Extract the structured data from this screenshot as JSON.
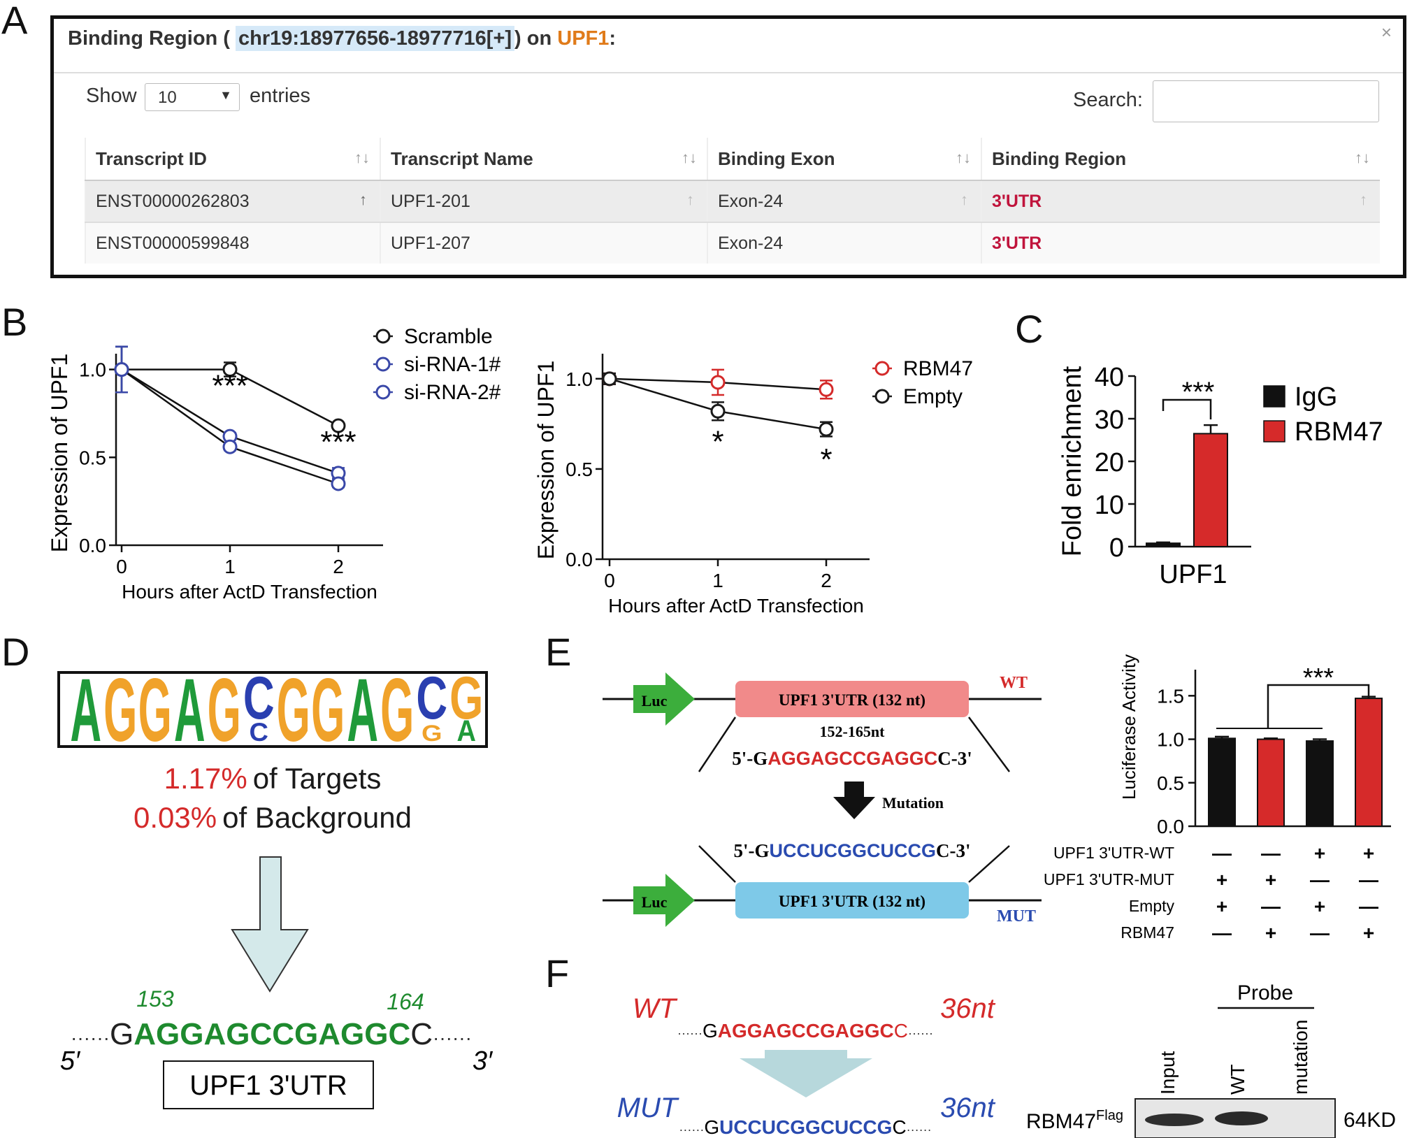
{
  "panel_labels": {
    "a": "A",
    "b": "B",
    "c": "C",
    "d": "D",
    "e": "E",
    "f": "F"
  },
  "panelA": {
    "title_prefix": "Binding Region (",
    "locus": "chr19:18977656-18977716[+]",
    "title_mid": ") on",
    "gene": "UPF1",
    "title_suffix": ":",
    "close": "×",
    "show_label": "Show",
    "entries_value": "10",
    "entries_label": "entries",
    "search_label": "Search:",
    "columns": [
      "Transcript ID",
      "Transcript Name",
      "Binding Exon",
      "Binding Region"
    ],
    "rows": [
      [
        "ENST00000262803",
        "UPF1-201",
        "Exon-24",
        "3'UTR"
      ],
      [
        "ENST00000599848",
        "UPF1-207",
        "Exon-24",
        "3'UTR"
      ]
    ]
  },
  "chart_data": [
    {
      "id": "B-left",
      "type": "line",
      "xlabel": "Hours after ActD Transfection",
      "ylabel": "Expression of UPF1",
      "x": [
        0,
        1,
        2
      ],
      "xticks": [
        "0",
        "1",
        "2"
      ],
      "yticks": [
        "0.0",
        "0.5",
        "1.0"
      ],
      "ylim": [
        0,
        1.05
      ],
      "series": [
        {
          "name": "Scramble",
          "color": "#1a1a1a",
          "values": [
            1.0,
            1.0,
            0.68
          ],
          "err": [
            0.13,
            0.04,
            0.01
          ]
        },
        {
          "name": "si-RNA-1#",
          "color": "#3a48a8",
          "values": [
            1.0,
            0.62,
            0.41
          ],
          "err": [
            0.13,
            0.02,
            0.03
          ]
        },
        {
          "name": "si-RNA-2#",
          "color": "#3a48a8",
          "values": [
            1.0,
            0.56,
            0.35
          ],
          "err": [
            0.13,
            0.02,
            0.02
          ]
        }
      ],
      "annotations": [
        {
          "x": 1,
          "text": "***"
        },
        {
          "x": 2,
          "text": "***"
        }
      ]
    },
    {
      "id": "B-right",
      "type": "line",
      "xlabel": "Hours after ActD Transfection",
      "ylabel": "Expression of UPF1",
      "x": [
        0,
        1,
        2
      ],
      "xticks": [
        "0",
        "1",
        "2"
      ],
      "yticks": [
        "0.0",
        "0.5",
        "1.0"
      ],
      "ylim": [
        0,
        1.1
      ],
      "series": [
        {
          "name": "RBM47",
          "color": "#d42a2a",
          "values": [
            1.0,
            0.98,
            0.94
          ],
          "err": [
            0.03,
            0.07,
            0.05
          ]
        },
        {
          "name": "Empty",
          "color": "#1a1a1a",
          "values": [
            1.0,
            0.82,
            0.72
          ],
          "err": [
            0.03,
            0.05,
            0.04
          ]
        }
      ],
      "annotations": [
        {
          "x": 1,
          "text": "*"
        },
        {
          "x": 2,
          "text": "*"
        }
      ]
    },
    {
      "id": "C",
      "type": "bar",
      "categories": [
        "IgG",
        "RBM47"
      ],
      "values": [
        0.8,
        26.5
      ],
      "err": [
        0.2,
        2.0
      ],
      "colors": [
        "#111111",
        "#d62a2a"
      ],
      "ylabel": "Fold enrichment",
      "xlabel": "UPF1",
      "yticks": [
        "0",
        "10",
        "20",
        "30",
        "40"
      ],
      "ylim": [
        0,
        40
      ],
      "annotation": "***"
    },
    {
      "id": "E",
      "type": "bar",
      "ylabel": "Luciferase Activity",
      "values": [
        1.01,
        1.0,
        0.98,
        1.47
      ],
      "err": [
        0.02,
        0.01,
        0.02,
        0.02
      ],
      "colors": [
        "#111111",
        "#d62a2a",
        "#111111",
        "#d62a2a"
      ],
      "yticks": [
        "0.0",
        "0.5",
        "1.0",
        "1.5"
      ],
      "ylim": [
        0,
        1.8
      ],
      "annotation": "***",
      "conditions": [
        {
          "label": "UPF1 3'UTR-WT",
          "signs": [
            "—",
            "—",
            "+",
            "+"
          ]
        },
        {
          "label": "UPF1 3'UTR-MUT",
          "signs": [
            "+",
            "+",
            "—",
            "—"
          ]
        },
        {
          "label": "Empty",
          "signs": [
            "+",
            "—",
            "+",
            "—"
          ]
        },
        {
          "label": "RBM47",
          "signs": [
            "—",
            "+",
            "—",
            "+"
          ]
        }
      ]
    }
  ],
  "panelD": {
    "motif": [
      "A",
      "G",
      "G",
      "A",
      "G",
      "C",
      "G",
      "G",
      "A",
      "G",
      "C",
      "G"
    ],
    "motif_lower": [
      "C",
      "G",
      "A"
    ],
    "targets_pct": "1.17%",
    "targets_text": "of Targets",
    "background_pct": "0.03%",
    "background_text": "of Background",
    "pos_start": "153",
    "pos_end": "164",
    "seq_dots": "······",
    "seq_left": "G",
    "seq_core": "AGGAGCCGAGGC",
    "seq_right": "C",
    "five": "5′",
    "three": "3′",
    "box_label": "UPF1 3'UTR"
  },
  "panelE": {
    "luc": "Luc",
    "utr": "UPF1 3'UTR (132 nt)",
    "wt": "WT",
    "mut": "MUT",
    "range": "152-165nt",
    "wt_prefix": "5'-G",
    "wt_core": "AGGAGCCGAGGC",
    "wt_suffix": "C-3'",
    "mutation": "Mutation",
    "mut_prefix": "5'-G",
    "mut_core": "UCCUCGGCUCCG",
    "mut_suffix": "C-3'"
  },
  "panelF": {
    "wt": "WT",
    "mut": "MUT",
    "len_wt": "36nt",
    "len_mut": "36nt",
    "dots": "······",
    "g": "G",
    "wt_core": "AGGAGCCGAGGC",
    "c": "C",
    "mut_core": "UCCUCGGCUCCG",
    "probe": "Probe",
    "lanes": [
      "Input",
      "WT",
      "mutation"
    ],
    "protein": "RBM47",
    "protein_sup": "Flag",
    "size": "64KD"
  }
}
